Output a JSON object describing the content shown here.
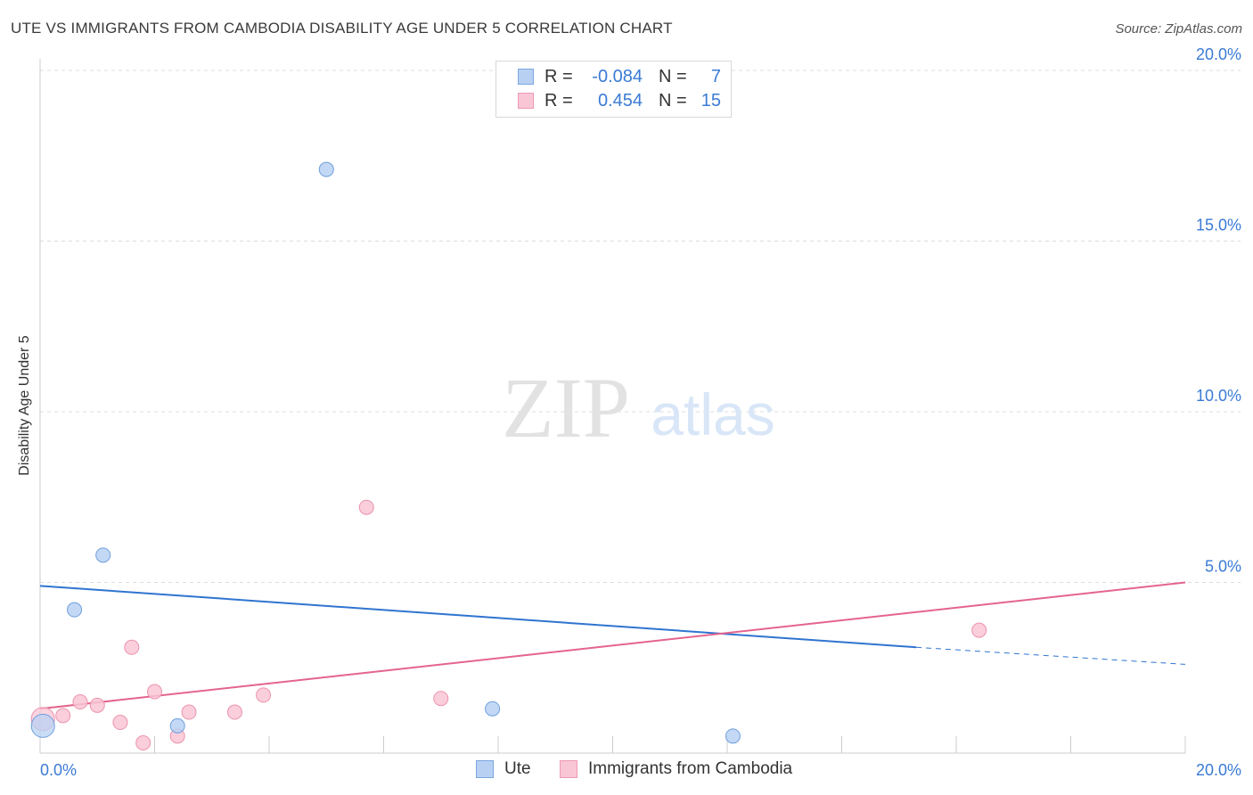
{
  "title": "UTE VS IMMIGRANTS FROM CAMBODIA DISABILITY AGE UNDER 5 CORRELATION CHART",
  "source": "Source: ZipAtlas.com",
  "watermark": {
    "zip": "ZIP",
    "atlas": "atlas"
  },
  "legend": {
    "rows": [
      {
        "r_label": "R =",
        "r_value": "-0.084",
        "n_label": "N =",
        "n_value": "7",
        "color": "#b8d1f3",
        "border": "#7aa6e0"
      },
      {
        "r_label": "R =",
        "r_value": "0.454",
        "n_label": "N =",
        "n_value": "15",
        "color": "#f9c6d5",
        "border": "#ee9ab3"
      }
    ]
  },
  "bottom_legend": {
    "ute": "Ute",
    "cambodia": "Immigrants from Cambodia"
  },
  "chart_data": {
    "type": "scatter",
    "title": "UTE VS IMMIGRANTS FROM CAMBODIA DISABILITY AGE UNDER 5 CORRELATION CHART",
    "xlabel": "",
    "ylabel": "Disability Age Under 5",
    "xlim": [
      0,
      20
    ],
    "ylim": [
      0,
      20
    ],
    "x_tick_labels": [
      "0.0%",
      "20.0%"
    ],
    "y_ticks": [
      5,
      10,
      15,
      20
    ],
    "y_tick_labels": [
      "5.0%",
      "10.0%",
      "15.0%",
      "20.0%"
    ],
    "series": [
      {
        "name": "Ute",
        "color": "#b8d1f3",
        "stroke": "#6f9fdc",
        "line_color": "#2f74d0",
        "points": [
          {
            "x": 0.05,
            "y": 0.8,
            "big": true
          },
          {
            "x": 0.6,
            "y": 4.2
          },
          {
            "x": 1.1,
            "y": 5.8
          },
          {
            "x": 2.4,
            "y": 0.8
          },
          {
            "x": 5.0,
            "y": 17.1
          },
          {
            "x": 7.9,
            "y": 1.3
          },
          {
            "x": 12.1,
            "y": 0.5
          }
        ],
        "trend": {
          "x0": 0,
          "y0": 4.9,
          "x1": 15.3,
          "y1": 3.1,
          "dash_x1": 20,
          "dash_y1": 2.6
        }
      },
      {
        "name": "Immigrants from Cambodia",
        "color": "#f9c6d5",
        "stroke": "#ec93ae",
        "line_color": "#e4648d",
        "points": [
          {
            "x": 0.05,
            "y": 1.0,
            "big": true
          },
          {
            "x": 0.4,
            "y": 1.1
          },
          {
            "x": 0.7,
            "y": 1.5
          },
          {
            "x": 1.0,
            "y": 1.4
          },
          {
            "x": 1.4,
            "y": 0.9
          },
          {
            "x": 1.6,
            "y": 3.1
          },
          {
            "x": 1.8,
            "y": 0.3
          },
          {
            "x": 2.0,
            "y": 1.8
          },
          {
            "x": 2.4,
            "y": 0.5
          },
          {
            "x": 2.6,
            "y": 1.2
          },
          {
            "x": 3.4,
            "y": 1.2
          },
          {
            "x": 3.9,
            "y": 1.7
          },
          {
            "x": 5.7,
            "y": 7.2
          },
          {
            "x": 7.0,
            "y": 1.6
          },
          {
            "x": 16.4,
            "y": 3.6
          }
        ],
        "trend": {
          "x0": 0,
          "y0": 1.3,
          "x1": 20,
          "y1": 5.0
        }
      }
    ]
  }
}
